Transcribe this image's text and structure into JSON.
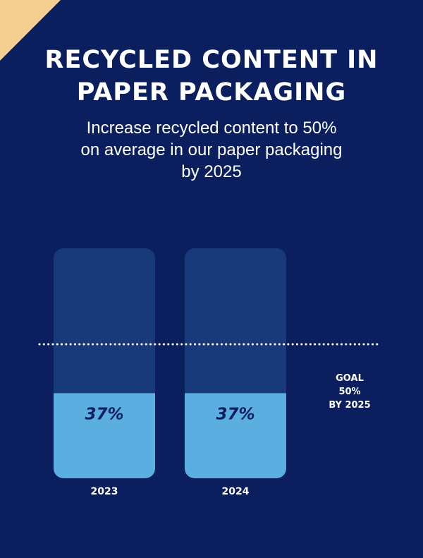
{
  "header": {
    "title_line1": "RECYCLED CONTENT IN",
    "title_line2": "PAPER PACKAGING",
    "subtitle_line1": "Increase recycled content to 50%",
    "subtitle_line2": "on average in our paper packaging",
    "subtitle_line3": "by 2025"
  },
  "colors": {
    "background": "#0b1f5f",
    "bar_track": "#18397a",
    "bar_fill": "#5aaee0",
    "corner_accent": "#f5cf8f",
    "text": "#ffffff"
  },
  "chart_data": {
    "type": "bar",
    "categories": [
      "2023",
      "2024"
    ],
    "values": [
      37,
      37
    ],
    "value_labels": [
      "37%",
      "37%"
    ],
    "ylim": [
      0,
      100
    ],
    "goal": {
      "value": 50,
      "label_lines": [
        "GOAL",
        "50%",
        "BY 2025"
      ]
    },
    "grid": false
  }
}
